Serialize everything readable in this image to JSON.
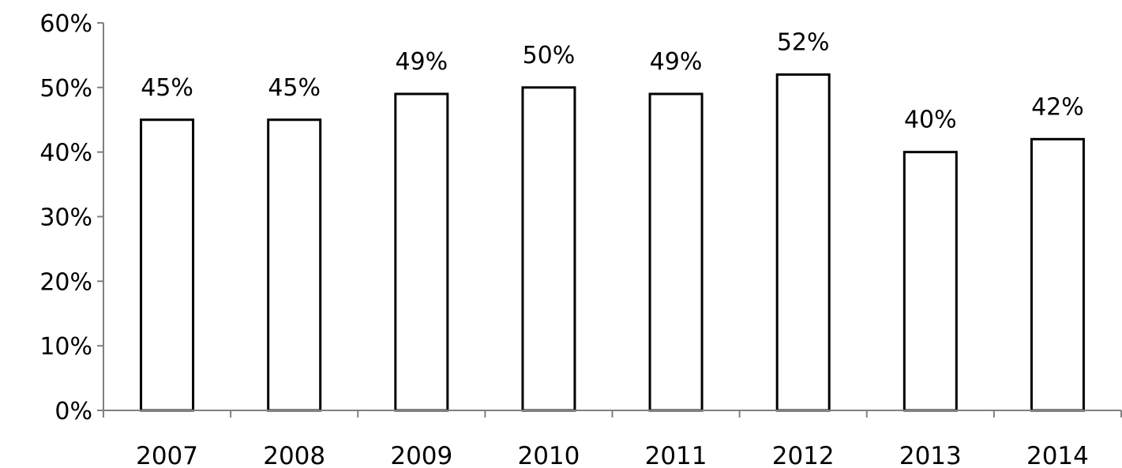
{
  "chart_data": {
    "type": "bar",
    "categories": [
      "2007",
      "2008",
      "2009",
      "2010",
      "2011",
      "2012",
      "2013",
      "2014"
    ],
    "values": [
      45,
      45,
      49,
      50,
      49,
      52,
      40,
      42
    ],
    "data_labels": [
      "45%",
      "45%",
      "49%",
      "50%",
      "49%",
      "52%",
      "40%",
      "42%"
    ],
    "y_ticks": [
      0,
      10,
      20,
      30,
      40,
      50,
      60
    ],
    "y_tick_labels": [
      "0%",
      "10%",
      "20%",
      "30%",
      "40%",
      "50%",
      "60%"
    ],
    "ylim": [
      0,
      60
    ],
    "title": "",
    "xlabel": "",
    "ylabel": "",
    "grid": false,
    "legend": "none",
    "colors": {
      "bar_fill": "#ffffff",
      "bar_stroke": "#000000",
      "axis": "#808080",
      "text": "#000000"
    }
  }
}
